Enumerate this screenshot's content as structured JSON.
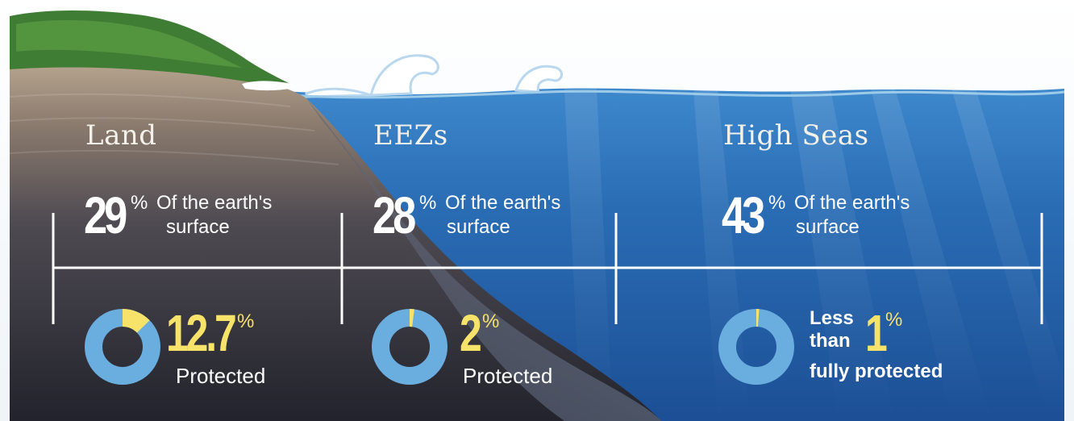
{
  "sections": [
    {
      "title": "Land",
      "share": "29",
      "share_unit": "%",
      "share_text_1": "Of the earth's",
      "share_text_2": "surface",
      "protected_value": "12.7",
      "protected_unit": "%",
      "protected_label": "Protected",
      "protected_fraction": 0.127
    },
    {
      "title": "EEZs",
      "share": "28",
      "share_unit": "%",
      "share_text_1": "Of the earth's",
      "share_text_2": "surface",
      "protected_value": "2",
      "protected_unit": "%",
      "protected_label": "Protected",
      "protected_fraction": 0.02
    },
    {
      "title": "High Seas",
      "share": "43",
      "share_unit": "%",
      "share_text_1": "Of the earth's",
      "share_text_2": "surface",
      "protected_prefix_1": "Less",
      "protected_prefix_2": "than",
      "protected_value": "1",
      "protected_unit": "%",
      "protected_label": "fully protected",
      "protected_fraction": 0.01
    }
  ],
  "colors": {
    "highlight": "#f7e36a",
    "donut_ring": "#6aaee0",
    "ocean": "#1f5fa6",
    "land": "#3a3a45",
    "text": "#ffffff"
  }
}
